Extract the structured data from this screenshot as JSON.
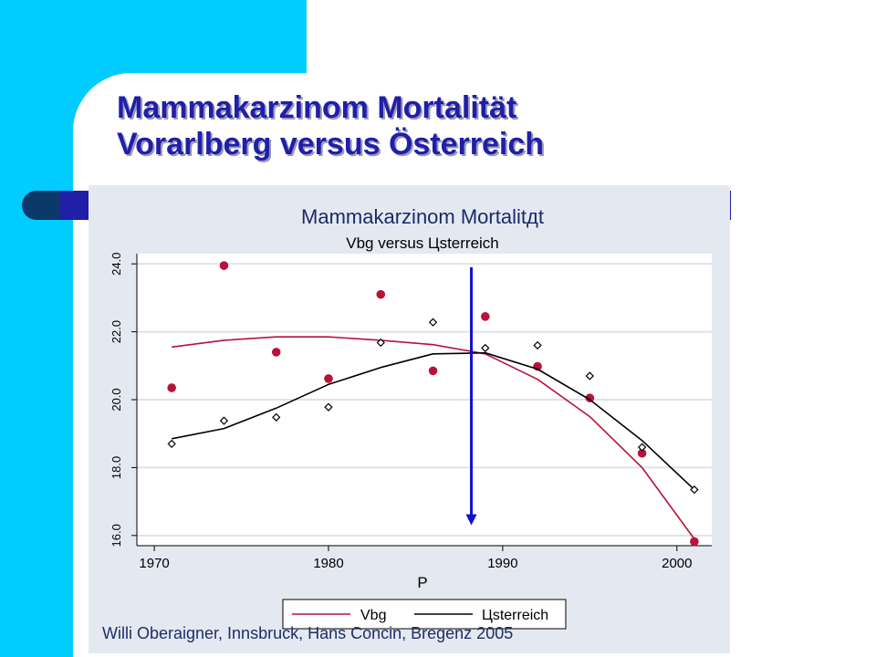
{
  "slide": {
    "title_line1": "Mammakarzinom Mortalität",
    "title_line2": "Vorarlberg versus Österreich",
    "footer": "Willi Oberaigner, Innsbruck, Hans Concin, Bregenz 2005",
    "colors": {
      "cyan": "#00ccff",
      "title": "#1f1fa8",
      "panel": "#e4e9f1",
      "vbg": "#b8123a",
      "oesterreich": "#000000",
      "marker_arrow": "#1010d0"
    }
  },
  "chart_data": {
    "type": "scatter",
    "title": "Mammakarzinom Mortalitдt",
    "subtitle": "Vbg versus Цsterreich",
    "xlabel": "P",
    "ylabel": "",
    "xlim": [
      1969,
      2002
    ],
    "ylim": [
      15.7,
      24.3
    ],
    "x_ticks": [
      1970,
      1980,
      1990,
      2000
    ],
    "y_ticks": [
      16.0,
      18.0,
      20.0,
      22.0,
      24.0
    ],
    "y_tick_labels": [
      "16.0",
      "18.0",
      "20.0",
      "22.0",
      "24.0"
    ],
    "grid": true,
    "legend_position": "bottom",
    "series": [
      {
        "name": "Vbg",
        "marker": "filled-circle",
        "points": [
          {
            "x": 1971,
            "y": 20.35
          },
          {
            "x": 1974,
            "y": 23.95
          },
          {
            "x": 1977,
            "y": 21.4
          },
          {
            "x": 1980,
            "y": 20.62
          },
          {
            "x": 1983,
            "y": 23.1
          },
          {
            "x": 1986,
            "y": 20.85
          },
          {
            "x": 1989,
            "y": 22.45
          },
          {
            "x": 1992,
            "y": 20.98
          },
          {
            "x": 1995,
            "y": 20.05
          },
          {
            "x": 1998,
            "y": 18.42
          },
          {
            "x": 2001,
            "y": 15.82
          }
        ],
        "smooth": [
          {
            "x": 1971,
            "y": 21.55
          },
          {
            "x": 1974,
            "y": 21.75
          },
          {
            "x": 1977,
            "y": 21.85
          },
          {
            "x": 1980,
            "y": 21.85
          },
          {
            "x": 1983,
            "y": 21.75
          },
          {
            "x": 1986,
            "y": 21.62
          },
          {
            "x": 1989,
            "y": 21.35
          },
          {
            "x": 1992,
            "y": 20.6
          },
          {
            "x": 1995,
            "y": 19.5
          },
          {
            "x": 1998,
            "y": 18.0
          },
          {
            "x": 2001,
            "y": 15.9
          }
        ]
      },
      {
        "name": "Цsterreich",
        "marker": "hollow-diamond",
        "points": [
          {
            "x": 1971,
            "y": 18.7
          },
          {
            "x": 1974,
            "y": 19.38
          },
          {
            "x": 1977,
            "y": 19.48
          },
          {
            "x": 1980,
            "y": 19.78
          },
          {
            "x": 1983,
            "y": 21.68
          },
          {
            "x": 1986,
            "y": 22.28
          },
          {
            "x": 1989,
            "y": 21.52
          },
          {
            "x": 1992,
            "y": 21.6
          },
          {
            "x": 1995,
            "y": 20.7
          },
          {
            "x": 1998,
            "y": 18.6
          },
          {
            "x": 2001,
            "y": 17.35
          }
        ],
        "smooth": [
          {
            "x": 1971,
            "y": 18.85
          },
          {
            "x": 1974,
            "y": 19.15
          },
          {
            "x": 1977,
            "y": 19.75
          },
          {
            "x": 1980,
            "y": 20.45
          },
          {
            "x": 1983,
            "y": 20.95
          },
          {
            "x": 1986,
            "y": 21.35
          },
          {
            "x": 1989,
            "y": 21.38
          },
          {
            "x": 1992,
            "y": 20.9
          },
          {
            "x": 1995,
            "y": 20.0
          },
          {
            "x": 1998,
            "y": 18.8
          },
          {
            "x": 2001,
            "y": 17.35
          }
        ]
      }
    ],
    "annotations": [
      {
        "type": "arrow",
        "x": 1988.2,
        "y_from": 23.9,
        "y_to": 16.3,
        "color": "#1010d0"
      }
    ]
  }
}
